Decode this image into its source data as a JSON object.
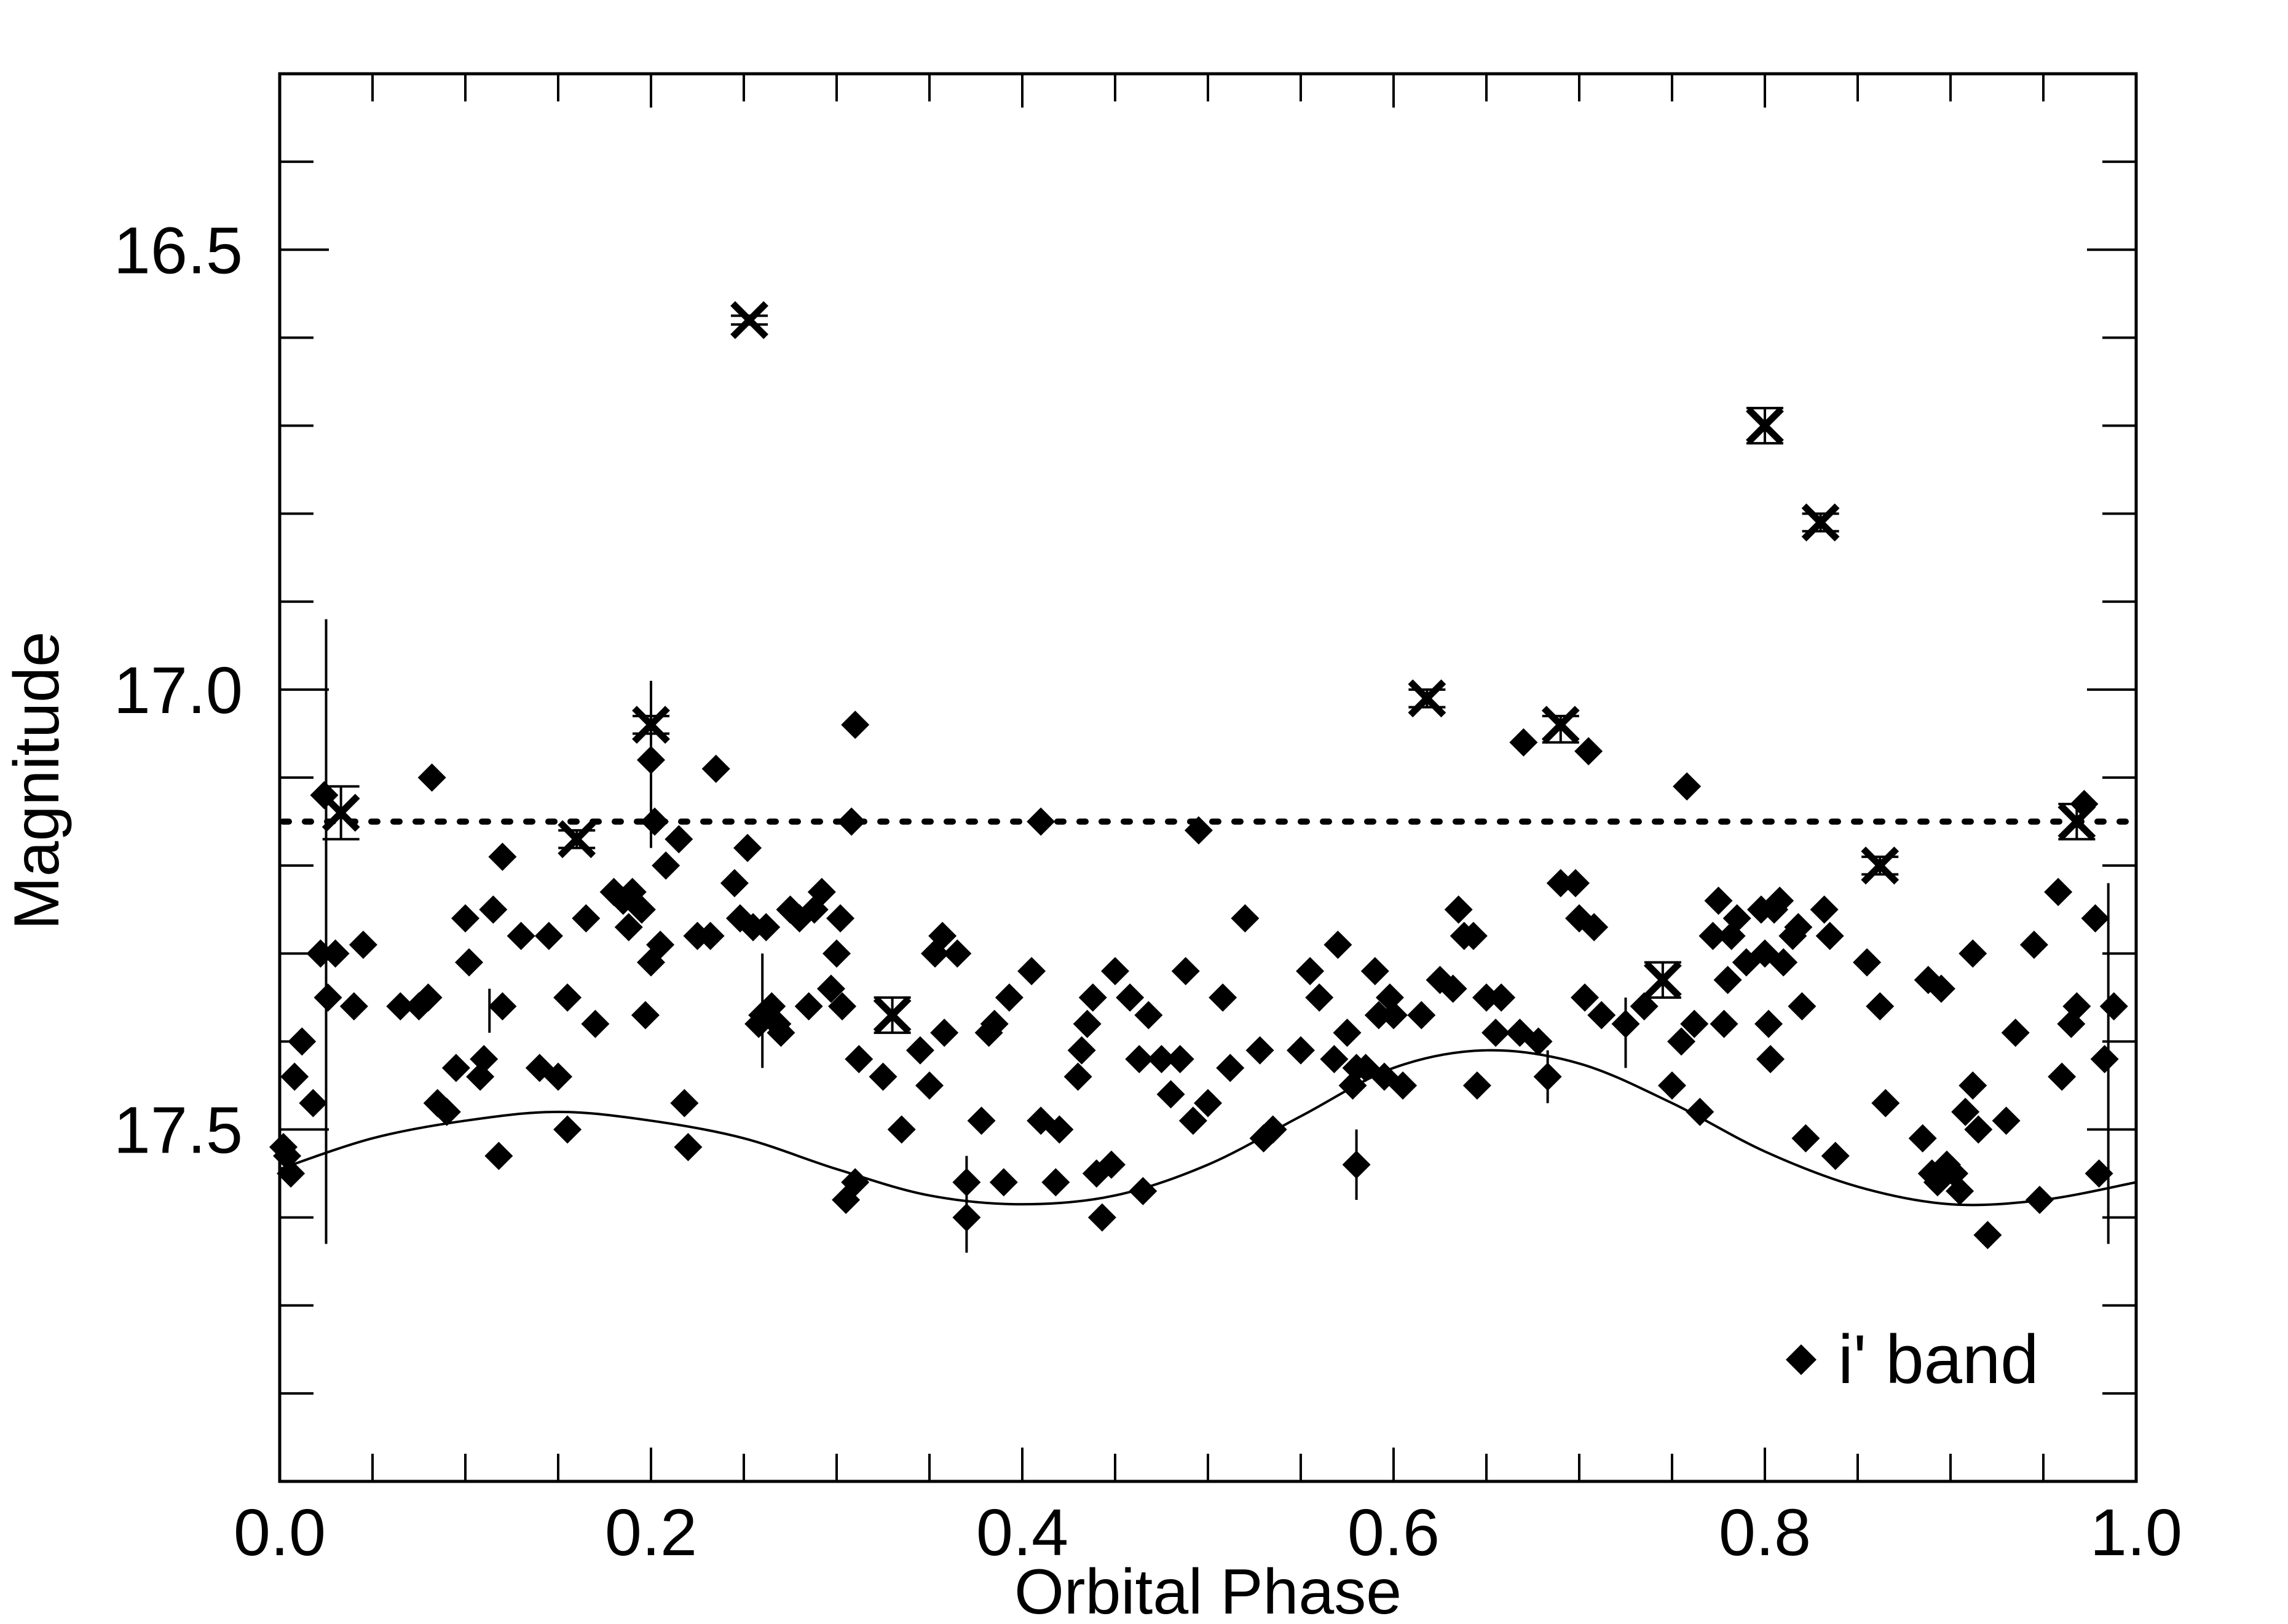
{
  "chart_data": {
    "type": "scatter",
    "title": "",
    "xlabel": "Orbital Phase",
    "ylabel": "Magnitude",
    "xlim": [
      0.0,
      1.0
    ],
    "ylim": [
      17.9,
      16.3
    ],
    "y_inverted": true,
    "x_ticks": [
      0.0,
      0.2,
      0.4,
      0.6,
      0.8,
      1.0
    ],
    "x_tick_labels": [
      "0.0",
      "0.2",
      "0.4",
      "0.6",
      "0.8",
      "1.0"
    ],
    "y_ticks": [
      16.5,
      17.0,
      17.5
    ],
    "y_tick_labels": [
      "16.5",
      "17.0",
      "17.5"
    ],
    "grid": false,
    "legend": {
      "position": "bottom-right",
      "entries": [
        {
          "label": "i' band",
          "marker": "diamond"
        }
      ]
    },
    "reference_line": {
      "style": "dotted",
      "y": 17.15
    },
    "model_curve": {
      "style": "solid",
      "description": "sinusoidal fit",
      "points": [
        [
          0.0,
          17.545
        ],
        [
          0.05,
          17.51
        ],
        [
          0.1,
          17.49
        ],
        [
          0.15,
          17.48
        ],
        [
          0.2,
          17.49
        ],
        [
          0.25,
          17.51
        ],
        [
          0.3,
          17.545
        ],
        [
          0.35,
          17.575
        ],
        [
          0.4,
          17.585
        ],
        [
          0.45,
          17.575
        ],
        [
          0.5,
          17.54
        ],
        [
          0.55,
          17.485
        ],
        [
          0.6,
          17.43
        ],
        [
          0.65,
          17.41
        ],
        [
          0.7,
          17.425
        ],
        [
          0.75,
          17.47
        ],
        [
          0.8,
          17.525
        ],
        [
          0.85,
          17.565
        ],
        [
          0.9,
          17.585
        ],
        [
          0.95,
          17.58
        ],
        [
          1.0,
          17.56
        ]
      ]
    },
    "series": [
      {
        "name": "i' band",
        "marker": "diamond",
        "points": [
          [
            0.002,
            17.52
          ],
          [
            0.004,
            17.53
          ],
          [
            0.006,
            17.55
          ],
          [
            0.008,
            17.44
          ],
          [
            0.012,
            17.4
          ],
          [
            0.018,
            17.47
          ],
          [
            0.022,
            17.3
          ],
          [
            0.024,
            17.12
          ],
          [
            0.026,
            17.35
          ],
          [
            0.03,
            17.3
          ],
          [
            0.04,
            17.36
          ],
          [
            0.045,
            17.29
          ],
          [
            0.065,
            17.36
          ],
          [
            0.075,
            17.36
          ],
          [
            0.08,
            17.35
          ],
          [
            0.082,
            17.1
          ],
          [
            0.085,
            17.47
          ],
          [
            0.09,
            17.48
          ],
          [
            0.095,
            17.43
          ],
          [
            0.1,
            17.26
          ],
          [
            0.102,
            17.31
          ],
          [
            0.108,
            17.44
          ],
          [
            0.11,
            17.42
          ],
          [
            0.115,
            17.25
          ],
          [
            0.118,
            17.53
          ],
          [
            0.12,
            17.36
          ],
          [
            0.12,
            17.19
          ],
          [
            0.13,
            17.28
          ],
          [
            0.14,
            17.43
          ],
          [
            0.145,
            17.28
          ],
          [
            0.15,
            17.44
          ],
          [
            0.155,
            17.35
          ],
          [
            0.155,
            17.5
          ],
          [
            0.165,
            17.26
          ],
          [
            0.17,
            17.38
          ],
          [
            0.18,
            17.23
          ],
          [
            0.185,
            17.24
          ],
          [
            0.188,
            17.27
          ],
          [
            0.19,
            17.23
          ],
          [
            0.195,
            17.25
          ],
          [
            0.197,
            17.37
          ],
          [
            0.2,
            17.08
          ],
          [
            0.2,
            17.31
          ],
          [
            0.202,
            17.15
          ],
          [
            0.205,
            17.29
          ],
          [
            0.208,
            17.2
          ],
          [
            0.215,
            17.17
          ],
          [
            0.218,
            17.47
          ],
          [
            0.22,
            17.52
          ],
          [
            0.225,
            17.28
          ],
          [
            0.232,
            17.28
          ],
          [
            0.235,
            17.09
          ],
          [
            0.245,
            17.22
          ],
          [
            0.248,
            17.26
          ],
          [
            0.252,
            17.18
          ],
          [
            0.255,
            17.27
          ],
          [
            0.258,
            17.38
          ],
          [
            0.26,
            17.37
          ],
          [
            0.262,
            17.27
          ],
          [
            0.265,
            17.36
          ],
          [
            0.268,
            17.38
          ],
          [
            0.27,
            17.39
          ],
          [
            0.275,
            17.25
          ],
          [
            0.28,
            17.26
          ],
          [
            0.285,
            17.36
          ],
          [
            0.288,
            17.25
          ],
          [
            0.292,
            17.23
          ],
          [
            0.297,
            17.34
          ],
          [
            0.3,
            17.3
          ],
          [
            0.302,
            17.26
          ],
          [
            0.303,
            17.36
          ],
          [
            0.305,
            17.58
          ],
          [
            0.308,
            17.15
          ],
          [
            0.31,
            17.56
          ],
          [
            0.31,
            17.04
          ],
          [
            0.312,
            17.42
          ],
          [
            0.325,
            17.44
          ],
          [
            0.335,
            17.5
          ],
          [
            0.345,
            17.41
          ],
          [
            0.35,
            17.45
          ],
          [
            0.353,
            17.3
          ],
          [
            0.357,
            17.28
          ],
          [
            0.358,
            17.39
          ],
          [
            0.365,
            17.3
          ],
          [
            0.37,
            17.56
          ],
          [
            0.37,
            17.6
          ],
          [
            0.378,
            17.49
          ],
          [
            0.382,
            17.39
          ],
          [
            0.385,
            17.38
          ],
          [
            0.39,
            17.56
          ],
          [
            0.393,
            17.35
          ],
          [
            0.405,
            17.32
          ],
          [
            0.41,
            17.15
          ],
          [
            0.41,
            17.49
          ],
          [
            0.418,
            17.56
          ],
          [
            0.42,
            17.5
          ],
          [
            0.43,
            17.44
          ],
          [
            0.432,
            17.41
          ],
          [
            0.435,
            17.38
          ],
          [
            0.438,
            17.35
          ],
          [
            0.44,
            17.55
          ],
          [
            0.443,
            17.6
          ],
          [
            0.448,
            17.54
          ],
          [
            0.45,
            17.32
          ],
          [
            0.458,
            17.35
          ],
          [
            0.463,
            17.42
          ],
          [
            0.465,
            17.57
          ],
          [
            0.468,
            17.37
          ],
          [
            0.475,
            17.42
          ],
          [
            0.48,
            17.46
          ],
          [
            0.485,
            17.42
          ],
          [
            0.488,
            17.32
          ],
          [
            0.492,
            17.49
          ],
          [
            0.495,
            17.16
          ],
          [
            0.5,
            17.47
          ],
          [
            0.508,
            17.35
          ],
          [
            0.512,
            17.43
          ],
          [
            0.52,
            17.26
          ],
          [
            0.528,
            17.41
          ],
          [
            0.53,
            17.51
          ],
          [
            0.535,
            17.5
          ],
          [
            0.55,
            17.41
          ],
          [
            0.555,
            17.32
          ],
          [
            0.56,
            17.35
          ],
          [
            0.568,
            17.42
          ],
          [
            0.57,
            17.29
          ],
          [
            0.575,
            17.39
          ],
          [
            0.578,
            17.45
          ],
          [
            0.58,
            17.43
          ],
          [
            0.58,
            17.54
          ],
          [
            0.585,
            17.43
          ],
          [
            0.59,
            17.32
          ],
          [
            0.592,
            17.37
          ],
          [
            0.595,
            17.44
          ],
          [
            0.598,
            17.35
          ],
          [
            0.6,
            17.37
          ],
          [
            0.605,
            17.45
          ],
          [
            0.615,
            17.37
          ],
          [
            0.625,
            17.33
          ],
          [
            0.632,
            17.34
          ],
          [
            0.635,
            17.25
          ],
          [
            0.638,
            17.28
          ],
          [
            0.643,
            17.28
          ],
          [
            0.645,
            17.45
          ],
          [
            0.65,
            17.35
          ],
          [
            0.655,
            17.39
          ],
          [
            0.658,
            17.35
          ],
          [
            0.668,
            17.39
          ],
          [
            0.67,
            17.06
          ],
          [
            0.678,
            17.4
          ],
          [
            0.683,
            17.44
          ],
          [
            0.69,
            17.22
          ],
          [
            0.698,
            17.22
          ],
          [
            0.7,
            17.26
          ],
          [
            0.703,
            17.35
          ],
          [
            0.705,
            17.07
          ],
          [
            0.708,
            17.27
          ],
          [
            0.712,
            17.37
          ],
          [
            0.725,
            17.38
          ],
          [
            0.735,
            17.36
          ],
          [
            0.75,
            17.45
          ],
          [
            0.755,
            17.4
          ],
          [
            0.758,
            17.11
          ],
          [
            0.762,
            17.38
          ],
          [
            0.765,
            17.48
          ],
          [
            0.772,
            17.28
          ],
          [
            0.775,
            17.24
          ],
          [
            0.778,
            17.38
          ],
          [
            0.78,
            17.33
          ],
          [
            0.782,
            17.28
          ],
          [
            0.785,
            17.26
          ],
          [
            0.79,
            17.31
          ],
          [
            0.798,
            17.25
          ],
          [
            0.8,
            17.3
          ],
          [
            0.802,
            17.38
          ],
          [
            0.803,
            17.42
          ],
          [
            0.805,
            17.25
          ],
          [
            0.808,
            17.24
          ],
          [
            0.81,
            17.31
          ],
          [
            0.815,
            17.28
          ],
          [
            0.818,
            17.27
          ],
          [
            0.82,
            17.36
          ],
          [
            0.822,
            17.51
          ],
          [
            0.832,
            17.25
          ],
          [
            0.835,
            17.28
          ],
          [
            0.838,
            17.53
          ],
          [
            0.855,
            17.31
          ],
          [
            0.862,
            17.36
          ],
          [
            0.865,
            17.47
          ],
          [
            0.885,
            17.51
          ],
          [
            0.888,
            17.33
          ],
          [
            0.89,
            17.55
          ],
          [
            0.893,
            17.56
          ],
          [
            0.895,
            17.34
          ],
          [
            0.898,
            17.54
          ],
          [
            0.902,
            17.55
          ],
          [
            0.905,
            17.57
          ],
          [
            0.908,
            17.48
          ],
          [
            0.912,
            17.45
          ],
          [
            0.912,
            17.3
          ],
          [
            0.915,
            17.5
          ],
          [
            0.92,
            17.62
          ],
          [
            0.93,
            17.49
          ],
          [
            0.935,
            17.39
          ],
          [
            0.958,
            17.23
          ],
          [
            0.96,
            17.44
          ],
          [
            0.965,
            17.38
          ],
          [
            0.968,
            17.36
          ],
          [
            0.972,
            17.13
          ],
          [
            0.978,
            17.26
          ],
          [
            0.98,
            17.55
          ],
          [
            0.983,
            17.42
          ],
          [
            0.988,
            17.36
          ],
          [
            0.945,
            17.29
          ],
          [
            0.948,
            17.58
          ]
        ],
        "error_bars": [
          [
            0.025,
            16.92,
            17.63
          ],
          [
            0.2,
            16.99,
            17.18
          ],
          [
            0.26,
            17.3,
            17.43
          ],
          [
            0.37,
            17.53,
            17.64
          ],
          [
            0.58,
            17.5,
            17.58
          ],
          [
            0.725,
            17.35,
            17.43
          ],
          [
            0.985,
            17.22,
            17.63
          ],
          [
            0.683,
            17.41,
            17.47
          ],
          [
            0.113,
            17.34,
            17.39
          ]
        ]
      },
      {
        "marker": "x",
        "points": [
          [
            0.033,
            17.14
          ],
          [
            0.16,
            17.17
          ],
          [
            0.2,
            17.04
          ],
          [
            0.253,
            16.58
          ],
          [
            0.33,
            17.37
          ],
          [
            0.618,
            17.01
          ],
          [
            0.69,
            17.04
          ],
          [
            0.745,
            17.33
          ],
          [
            0.8,
            16.7
          ],
          [
            0.83,
            16.81
          ],
          [
            0.862,
            17.2
          ],
          [
            0.968,
            17.15
          ]
        ],
        "error_bars": [
          [
            0.033,
            17.11,
            17.17
          ],
          [
            0.16,
            17.16,
            17.18
          ],
          [
            0.2,
            17.03,
            17.05
          ],
          [
            0.253,
            16.575,
            16.585
          ],
          [
            0.33,
            17.35,
            17.39
          ],
          [
            0.618,
            17.0,
            17.02
          ],
          [
            0.69,
            17.03,
            17.06
          ],
          [
            0.745,
            17.31,
            17.35
          ],
          [
            0.8,
            16.68,
            16.72
          ],
          [
            0.83,
            16.8,
            16.82
          ],
          [
            0.862,
            17.19,
            17.21
          ],
          [
            0.968,
            17.13,
            17.17
          ]
        ]
      }
    ]
  }
}
